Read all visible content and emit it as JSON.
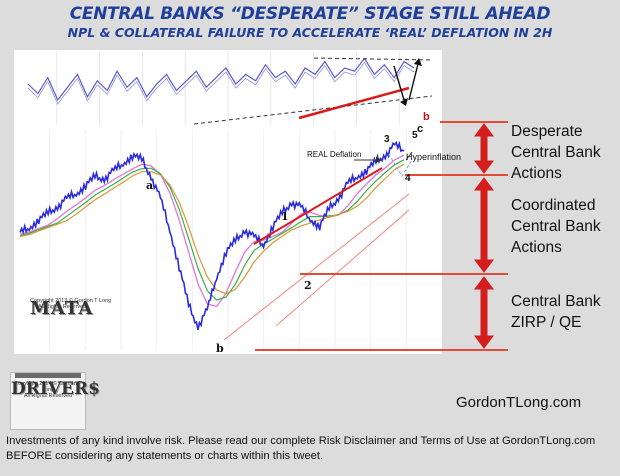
{
  "header": {
    "title": "CENTRAL BANKS “DESPERATE” STAGE STILL AHEAD",
    "subtitle": "NPL & COLLATERAL FAILURE  TO ACCELERATE ‘REAL’ DEFLATION IN 2H"
  },
  "stages": [
    {
      "lines": [
        "Desperate",
        "Central Bank",
        "Actions"
      ]
    },
    {
      "lines": [
        "Coordinated",
        "Central Bank",
        "Actions"
      ]
    },
    {
      "lines": [
        "Central Bank",
        "ZIRP / QE"
      ]
    }
  ],
  "annotations": {
    "real_deflation": "REAL Deflation",
    "hyperinflation": "Hyperinflation",
    "wave_a": "a",
    "wave_b_low": "b",
    "wave_1": "1",
    "wave_2": "2",
    "wave_3": "3",
    "wave_4": "4",
    "wave_5": "5",
    "wave_b_top": "b",
    "wave_c": "c"
  },
  "logos": {
    "mata": "MATA",
    "mata_copyright": "Copyright 2013 © Gordon T Long",
    "mata_rights": "All Rights Reserved",
    "drivers": "DRIVER$",
    "drivers_copyright": "Copyright 2014 © Gordon T Long",
    "drivers_rights": "All Rights Reserved"
  },
  "website": "GordonTLong.com",
  "disclaimer": [
    "Investments of any kind involve risk. Please read our complete Risk Disclaimer and Terms of Use at GordonTLong.com",
    "BEFORE considering any statements or charts within this tweet."
  ],
  "colors": {
    "title": "#1f3f9a",
    "price": "#2a2ae0",
    "trend": "#d81a1a",
    "arrow": "#d41e1e",
    "oscillator": "#5a5ad0"
  },
  "chart_data": [
    {
      "type": "line",
      "series": [
        {
          "values": [
            10,
            7,
            12,
            5,
            9,
            13,
            6,
            11,
            8,
            14,
            9,
            12,
            6,
            10,
            13,
            8,
            11,
            14,
            9,
            12,
            15,
            10,
            13,
            11,
            16,
            12,
            14,
            10,
            15,
            13,
            17,
            12,
            15,
            14,
            18,
            13,
            16,
            12,
            17,
            15
          ]
        }
      ],
      "trend_lines": [
        "upper-dashed",
        "lower-dashed",
        "rising-red"
      ]
    },
    {
      "type": "line",
      "series": [
        {
          "values": [
            54,
            56,
            60,
            63,
            66,
            70,
            72,
            76,
            80,
            79,
            83,
            86,
            90,
            88,
            80,
            70,
            55,
            38,
            20,
            10,
            18,
            33,
            45,
            50,
            55,
            52,
            48,
            57,
            63,
            68,
            66,
            60,
            57,
            65,
            70,
            77,
            80,
            83,
            87,
            90,
            95,
            92
          ]
        }
      ],
      "ylim": [
        0,
        100
      ],
      "wave_labels": [
        "a",
        "b",
        "1",
        "2",
        "3",
        "4",
        "5"
      ]
    }
  ]
}
